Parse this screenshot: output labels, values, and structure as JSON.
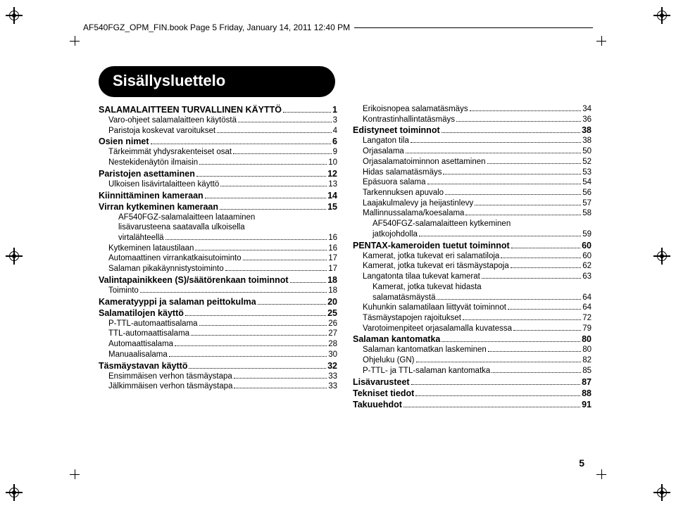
{
  "header": "AF540FGZ_OPM_FIN.book  Page 5  Friday, January 14, 2011  12:40 PM",
  "title": "Sisällysluettelo",
  "page_number": "5",
  "colors": {
    "ink": "#000000",
    "bg": "#ffffff"
  },
  "toc_left": [
    {
      "level": 1,
      "label": "SALAMALAITTEEN TURVALLINEN KÄYTTÖ",
      "page": "1"
    },
    {
      "level": 2,
      "label": "Varo-ohjeet salamalaitteen käytöstä",
      "page": "3"
    },
    {
      "level": 2,
      "label": "Paristoja koskevat varoitukset",
      "page": "4"
    },
    {
      "level": 1,
      "label": "Osien nimet",
      "page": "6"
    },
    {
      "level": 2,
      "label": "Tärkeimmät yhdysrakenteiset osat",
      "page": "9"
    },
    {
      "level": 2,
      "label": "Nestekidenäytön ilmaisin",
      "page": "10"
    },
    {
      "level": 1,
      "label": "Paristojen asettaminen",
      "page": "12"
    },
    {
      "level": 2,
      "label": "Ulkoisen lisävirtalaitteen käyttö",
      "page": "13"
    },
    {
      "level": 1,
      "label": "Kiinnittäminen kameraan",
      "page": "14"
    },
    {
      "level": 1,
      "label": "Virran kytkeminen kameraan",
      "page": "15"
    },
    {
      "level": 3,
      "wrap": true,
      "label": "AF540FGZ-salamalaitteen lataaminen lisävarusteena saatavalla ulkoisella virtalähteellä",
      "page": "16"
    },
    {
      "level": 2,
      "label": "Kytkeminen lataustilaan",
      "page": "16"
    },
    {
      "level": 2,
      "label": "Automaattinen virrankatkaisutoiminto",
      "page": "17"
    },
    {
      "level": 2,
      "label": "Salaman pikakäynnistystoiminto",
      "page": "17"
    },
    {
      "level": 1,
      "label": "Valintapainikkeen (S)/säätörenkaan toiminnot",
      "page": "18"
    },
    {
      "level": 2,
      "label": "Toiminto",
      "page": "18"
    },
    {
      "level": 1,
      "label": "Kameratyyppi ja salaman peittokulma",
      "page": "20"
    },
    {
      "level": 1,
      "label": "Salamatilojen käyttö",
      "page": "25"
    },
    {
      "level": 2,
      "label": "P-TTL-automaattisalama",
      "page": "26"
    },
    {
      "level": 2,
      "label": "TTL-automaattisalama",
      "page": "27"
    },
    {
      "level": 2,
      "label": "Automaattisalama",
      "page": "28"
    },
    {
      "level": 2,
      "label": "Manuaalisalama",
      "page": "30"
    },
    {
      "level": 1,
      "label": "Täsmäystavan käyttö",
      "page": "32"
    },
    {
      "level": 2,
      "label": "Ensimmäisen verhon täsmäystapa",
      "page": "33"
    },
    {
      "level": 2,
      "label": "Jälkimmäisen verhon täsmäystapa",
      "page": "33"
    }
  ],
  "toc_right": [
    {
      "level": 2,
      "label": "Erikoisnopea salamatäsmäys",
      "page": "34"
    },
    {
      "level": 2,
      "label": "Kontrastinhallintatäsmäys",
      "page": "36"
    },
    {
      "level": 1,
      "label": "Edistyneet toiminnot",
      "page": "38"
    },
    {
      "level": 2,
      "label": "Langaton tila",
      "page": "38"
    },
    {
      "level": 2,
      "label": "Orjasalama",
      "page": "50"
    },
    {
      "level": 2,
      "label": "Orjasalamatoiminnon asettaminen",
      "page": "52"
    },
    {
      "level": 2,
      "label": "Hidas salamatäsmäys",
      "page": "53"
    },
    {
      "level": 2,
      "label": "Epäsuora salama",
      "page": "54"
    },
    {
      "level": 2,
      "label": "Tarkennuksen apuvalo",
      "page": "56"
    },
    {
      "level": 2,
      "label": "Laajakulmalevy ja heijastinlevy",
      "page": "57"
    },
    {
      "level": 2,
      "label": "Mallinnussalama/koesalama",
      "page": "58"
    },
    {
      "level": 3,
      "wrap": true,
      "label": "AF540FGZ-salamalaitteen kytkeminen jatkojohdolla",
      "page": "59"
    },
    {
      "level": 1,
      "label": "PENTAX-kameroiden tuetut toiminnot",
      "page": "60"
    },
    {
      "level": 2,
      "label": "Kamerat, jotka tukevat eri salamatiloja",
      "page": "60"
    },
    {
      "level": 2,
      "label": "Kamerat, jotka tukevat eri täsmäystapoja",
      "page": "62"
    },
    {
      "level": 2,
      "label": "Langatonta tilaa tukevat kamerat",
      "page": "63"
    },
    {
      "level": 3,
      "wrap": true,
      "label": "Kamerat, jotka tukevat hidasta salamatäsmäystä",
      "page": "64"
    },
    {
      "level": 2,
      "label": "Kuhunkin salamatilaan liittyvät toiminnot",
      "page": "64"
    },
    {
      "level": 2,
      "label": "Täsmäystapojen rajoitukset",
      "page": "72"
    },
    {
      "level": 2,
      "label": "Varotoimenpiteet orjasalamalla kuvatessa",
      "page": "79"
    },
    {
      "level": 1,
      "label": "Salaman kantomatka",
      "page": "80"
    },
    {
      "level": 2,
      "label": "Salaman kantomatkan laskeminen",
      "page": "80"
    },
    {
      "level": 2,
      "label": "Ohjeluku (GN)",
      "page": "82"
    },
    {
      "level": 2,
      "label": "P-TTL- ja TTL-salaman kantomatka",
      "page": "85"
    },
    {
      "level": 1,
      "label": "Lisävarusteet",
      "page": "87"
    },
    {
      "level": 1,
      "label": "Tekniset tiedot",
      "page": "88"
    },
    {
      "level": 1,
      "label": "Takuuehdot",
      "page": "91"
    }
  ]
}
